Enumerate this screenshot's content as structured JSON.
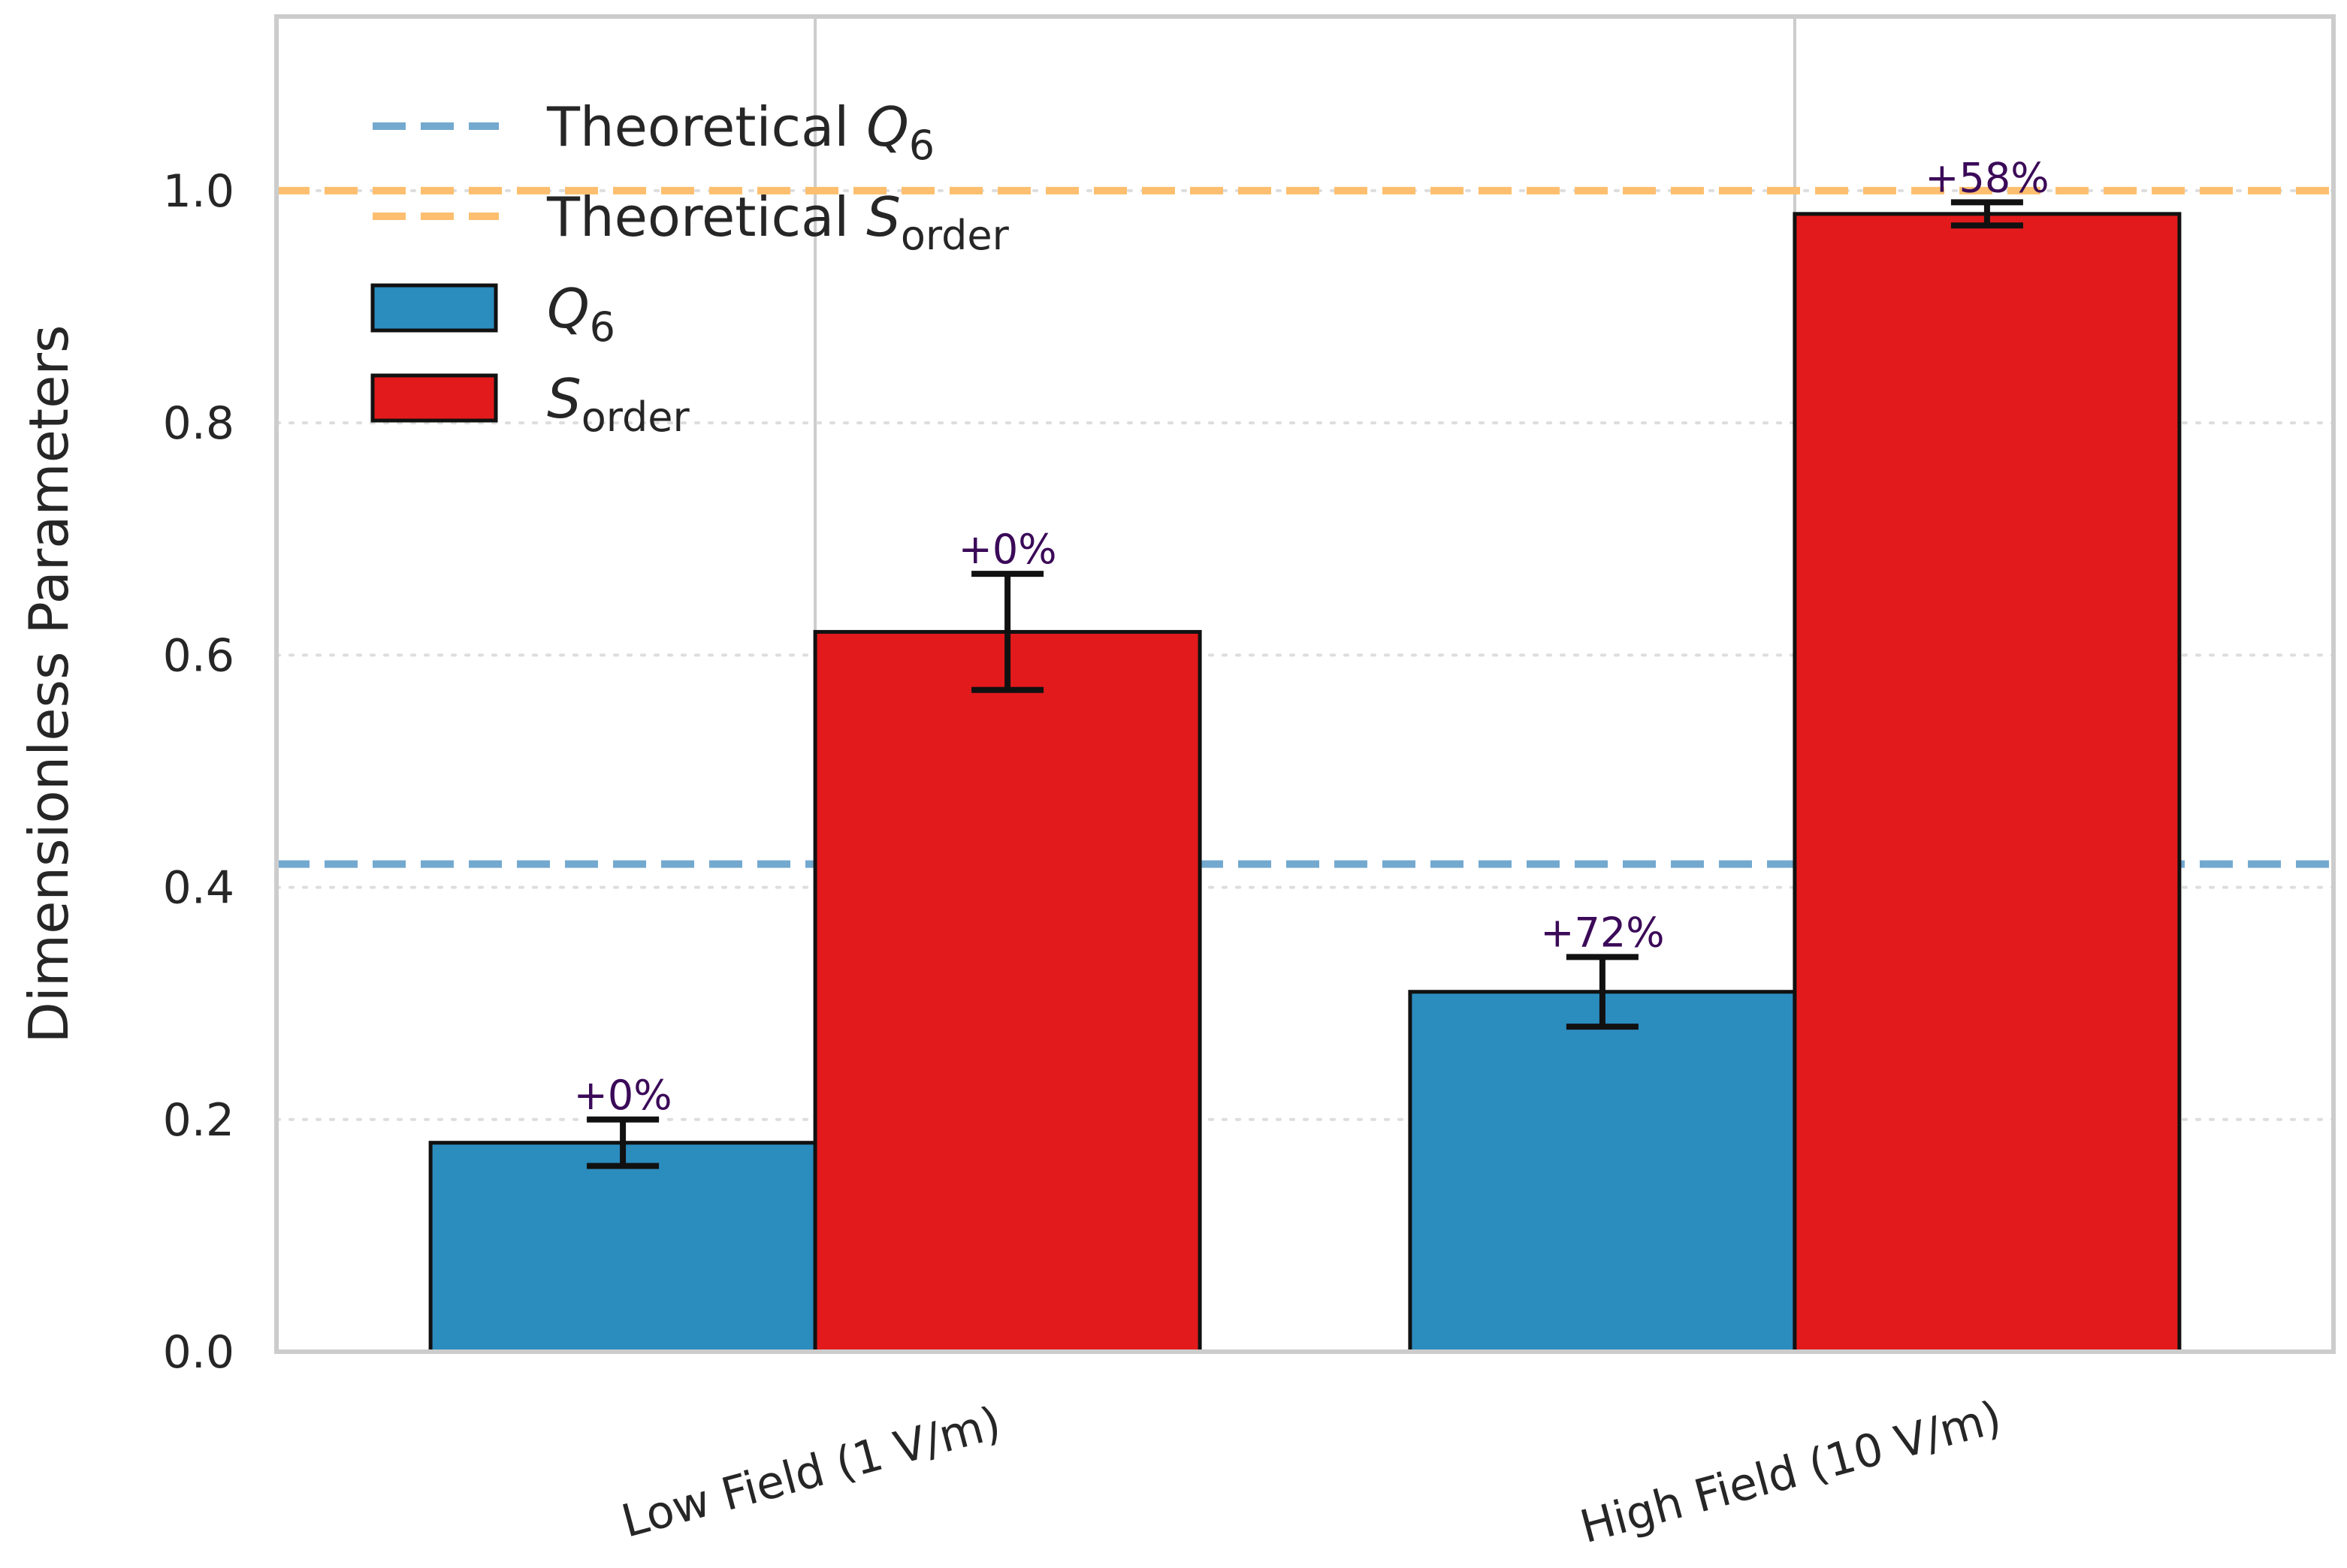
{
  "chart_data": {
    "type": "bar",
    "title": "",
    "xlabel": "",
    "ylabel": "Dimensionless Parameters",
    "ylim": [
      0,
      1.15
    ],
    "yticks": [
      "0.0",
      "0.2",
      "0.4",
      "0.6",
      "0.8",
      "1.0"
    ],
    "categories": [
      "Low Field (1 V/m)",
      "High Field (10 V/m)"
    ],
    "series": [
      {
        "name": "Q6",
        "legend": {
          "symbol": "Q",
          "sub": "6"
        },
        "color": "#2b8cbe",
        "values": [
          0.18,
          0.31
        ],
        "errors": [
          0.02,
          0.03
        ],
        "annotations": [
          "+0%",
          "+72%"
        ]
      },
      {
        "name": "S_order",
        "legend": {
          "symbol": "S",
          "sub": "order"
        },
        "color": "#e31a1c",
        "values": [
          0.62,
          0.98
        ],
        "errors": [
          0.05,
          0.01
        ],
        "annotations": [
          "+0%",
          "+58%"
        ]
      }
    ],
    "reference_lines": [
      {
        "name": "Theoretical Q6",
        "label": "Theoretical ",
        "symbol": "Q",
        "sub": "6",
        "value": 0.42,
        "color": "#74a9cf",
        "style": "dashed"
      },
      {
        "name": "Theoretical S_order",
        "label": "Theoretical ",
        "symbol": "S",
        "sub": "order",
        "value": 1.0,
        "color": "#fdbf6f",
        "style": "dashed"
      }
    ],
    "grid": true,
    "legend_position": "top-left"
  }
}
